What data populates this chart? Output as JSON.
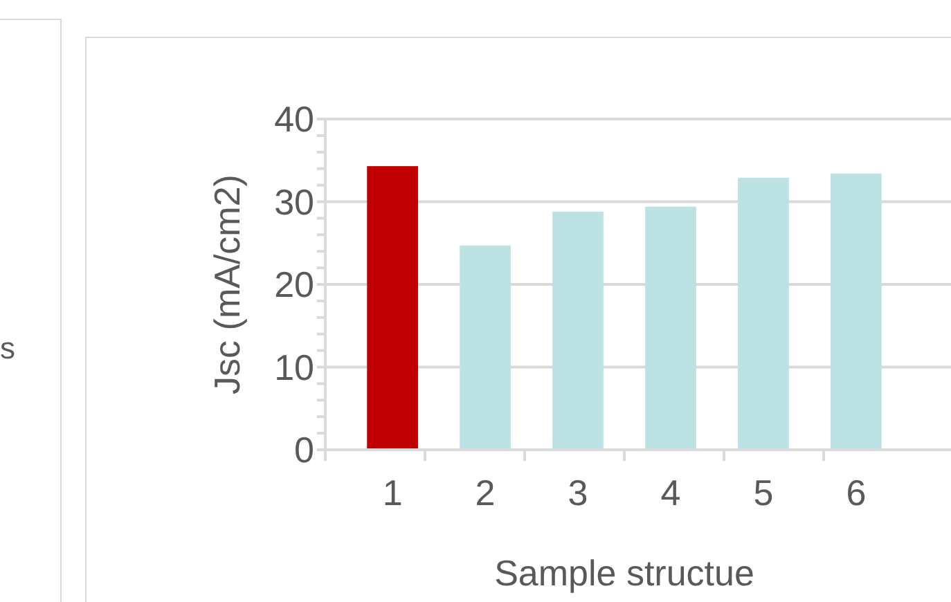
{
  "chart_data": {
    "type": "bar",
    "xlabel": "Sample structue",
    "ylabel": "Jsc (mA/cm2)",
    "categories": [
      "1",
      "2",
      "3",
      "4",
      "5",
      "6"
    ],
    "values": [
      34.3,
      24.7,
      28.8,
      29.4,
      32.9,
      33.4
    ],
    "colors": [
      "#c00000",
      "#bce2e4",
      "#bce2e4",
      "#bce2e4",
      "#bce2e4",
      "#bce2e4"
    ],
    "ylim": [
      0,
      40
    ],
    "yticks": [
      0,
      10,
      20,
      30,
      40
    ],
    "grid": "y",
    "annotations": [
      "s"
    ]
  }
}
